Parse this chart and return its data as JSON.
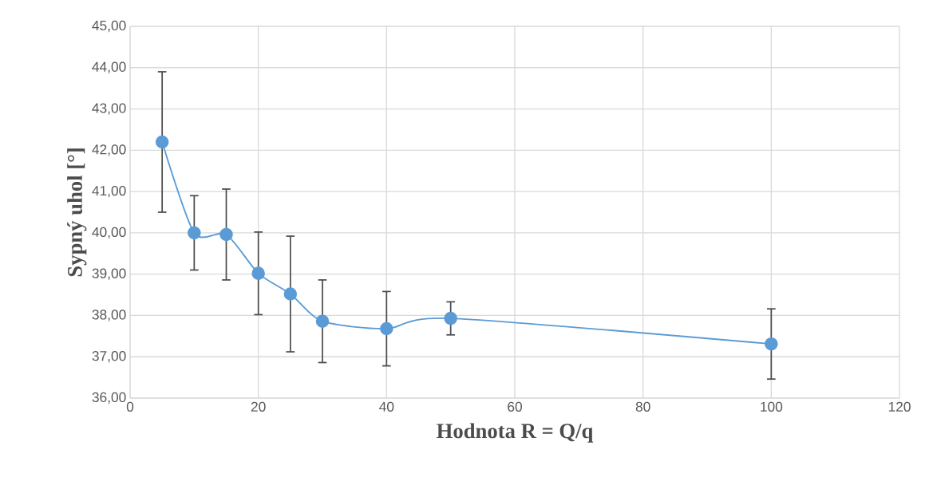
{
  "chart_data": {
    "type": "line",
    "xlabel": "Hodnota R = Q/q",
    "ylabel": "Sypný uhol [°]",
    "x": [
      5,
      10,
      15,
      20,
      25,
      30,
      40,
      50,
      100
    ],
    "values": [
      42.2,
      40.0,
      39.96,
      39.02,
      38.52,
      37.86,
      37.68,
      37.93,
      37.31
    ],
    "errors": [
      1.7,
      0.9,
      1.1,
      1.0,
      1.4,
      1.0,
      0.9,
      0.4,
      0.85
    ],
    "color": "#5b9bd5",
    "marker": "circle",
    "line_style": "solid",
    "grid": true,
    "xlim": [
      0,
      120
    ],
    "xticks": [
      0,
      20,
      40,
      60,
      80,
      100,
      120
    ],
    "ylim": [
      36,
      45
    ],
    "yticks": [
      {
        "value": 36,
        "label": "36,00"
      },
      {
        "value": 37,
        "label": "37,00"
      },
      {
        "value": 38,
        "label": "38,00"
      },
      {
        "value": 39,
        "label": "39,00"
      },
      {
        "value": 40,
        "label": "40,00"
      },
      {
        "value": 41,
        "label": "41,00"
      },
      {
        "value": 42,
        "label": "42,00"
      },
      {
        "value": 43,
        "label": "43,00"
      },
      {
        "value": 44,
        "label": "44,00"
      },
      {
        "value": 45,
        "label": "45,00"
      }
    ]
  }
}
